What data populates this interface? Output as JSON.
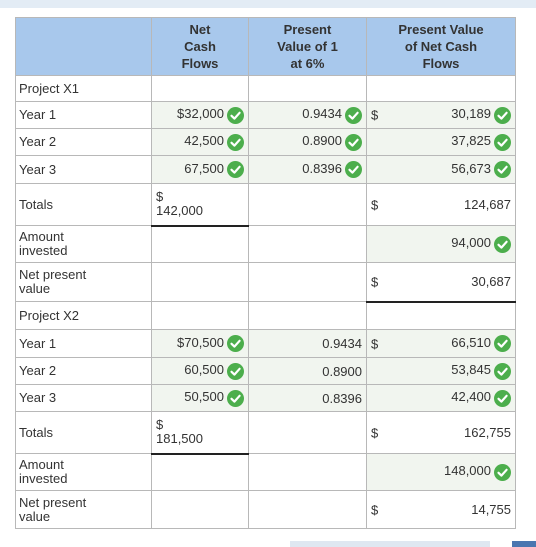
{
  "header": {
    "columns": [
      [
        "Net",
        "Cash",
        "Flows"
      ],
      [
        "Present",
        "Value of 1",
        "at 6%"
      ],
      [
        "Present Value",
        "of Net Cash",
        "Flows"
      ]
    ]
  },
  "rows": [
    {
      "label": "Project X1"
    },
    {
      "label": "Year 1",
      "cells": [
        {
          "value": "$32,000",
          "check": true
        },
        {
          "value": "0.9434",
          "check": true
        },
        {
          "prefix": "$",
          "value": "30,189",
          "check": true
        }
      ]
    },
    {
      "label": "Year 2",
      "cells": [
        {
          "value": "42,500",
          "check": true
        },
        {
          "value": "0.8900",
          "check": true
        },
        {
          "value": "37,825",
          "check": true
        }
      ]
    },
    {
      "label": "Year 3",
      "cells": [
        {
          "value": "67,500",
          "check": true
        },
        {
          "value": "0.8396",
          "check": true
        },
        {
          "value": "56,673",
          "check": true
        }
      ]
    },
    {
      "label": "Totals",
      "cells": [
        {
          "prefix": "$",
          "value": "142,000",
          "stacked": true,
          "underline": true
        },
        null,
        {
          "prefix": "$",
          "value": "124,687"
        }
      ]
    },
    {
      "label": "Amount invested",
      "cells": [
        null,
        null,
        {
          "value": "94,000",
          "check": true
        }
      ]
    },
    {
      "label": "Net present value",
      "cells": [
        null,
        null,
        {
          "prefix": "$",
          "value": "30,687",
          "underline": true
        }
      ]
    },
    {
      "label": "Project X2"
    },
    {
      "label": "Year 1",
      "cells": [
        {
          "value": "$70,500",
          "check": true
        },
        {
          "value": "0.9434"
        },
        {
          "prefix": "$",
          "value": "66,510",
          "check": true
        }
      ]
    },
    {
      "label": "Year 2",
      "cells": [
        {
          "value": "60,500",
          "check": true
        },
        {
          "value": "0.8900"
        },
        {
          "value": "53,845",
          "check": true
        }
      ]
    },
    {
      "label": "Year 3",
      "cells": [
        {
          "value": "50,500",
          "check": true
        },
        {
          "value": "0.8396"
        },
        {
          "value": "42,400",
          "check": true
        }
      ]
    },
    {
      "label": "Totals",
      "cells": [
        {
          "prefix": "$",
          "value": "181,500",
          "stacked": true,
          "underline": true
        },
        null,
        {
          "prefix": "$",
          "value": "162,755"
        }
      ]
    },
    {
      "label": "Amount invested",
      "cells": [
        null,
        null,
        {
          "value": "148,000",
          "check": true
        }
      ]
    },
    {
      "label": "Net present value",
      "cells": [
        null,
        null,
        {
          "prefix": "$",
          "value": "14,755"
        }
      ]
    }
  ]
}
